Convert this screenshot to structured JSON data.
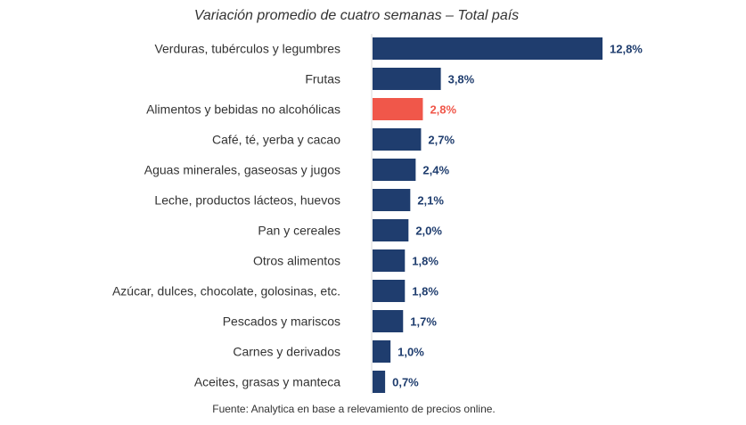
{
  "chart_data": {
    "type": "bar",
    "orientation": "horizontal",
    "title": "Variación promedio de cuatro semanas – Total país",
    "source": "Fuente: Analytica en base a relevamiento de precios online.",
    "categories": [
      "Verduras, tubérculos y legumbres",
      "Frutas",
      "Alimentos y bebidas no alcohólicas",
      "Café, té, yerba y cacao",
      "Aguas minerales, gaseosas y jugos",
      "Leche, productos lácteos, huevos",
      "Pan y cereales",
      "Otros alimentos",
      "Azúcar, dulces, chocolate, golosinas, etc.",
      "Pescados y mariscos",
      "Carnes y derivados",
      "Aceites, grasas y manteca"
    ],
    "values": [
      12.8,
      3.8,
      2.8,
      2.7,
      2.4,
      2.1,
      2.0,
      1.8,
      1.8,
      1.7,
      1.0,
      0.7
    ],
    "value_labels": [
      "12,8%",
      "3,8%",
      "2,8%",
      "2,7%",
      "2,4%",
      "2,1%",
      "2,0%",
      "1,8%",
      "1,8%",
      "1,7%",
      "1,0%",
      "0,7%"
    ],
    "highlight_category": "Alimentos y bebidas no alcohólicas",
    "xlim": [
      0,
      12.8
    ],
    "grid": false,
    "legend": "none",
    "colors": {
      "bar": "#1f3d6e",
      "highlight": "#f0574a",
      "text": "#333333"
    }
  }
}
